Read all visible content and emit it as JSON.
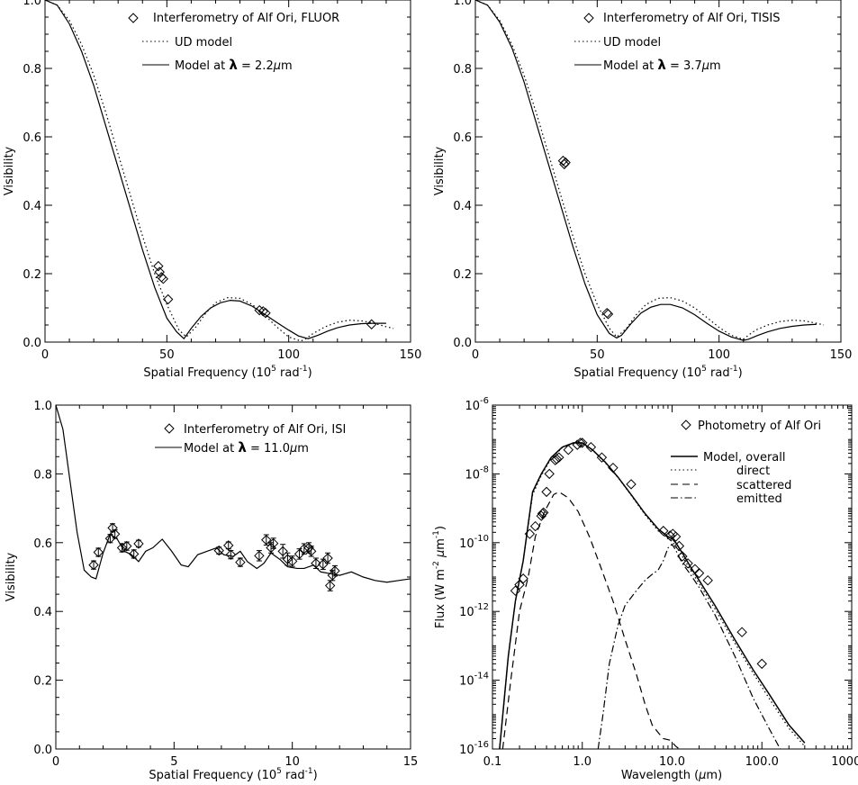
{
  "figure": {
    "panels": [
      {
        "id": "p1",
        "xlabel_main": "Spatial Frequency (10",
        "xlabel_sup": "5",
        "xlabel_tail": " rad",
        "xlabel_sup2": "-1",
        "xlabel_end": ")",
        "ylabel": "Visibility",
        "xticks": [
          "0",
          "50",
          "100",
          "150"
        ],
        "yticks": [
          "0.0",
          "0.2",
          "0.4",
          "0.6",
          "0.8",
          "1.0"
        ],
        "legend": [
          "Interferometry of Alf Ori, FLUOR",
          "UD model",
          "Model at",
          "λ",
          "= 2.2",
          "μ",
          "m"
        ]
      },
      {
        "id": "p2",
        "xlabel_main": "Spatial Frequency (10",
        "xlabel_sup": "5",
        "xlabel_tail": " rad",
        "xlabel_sup2": "-1",
        "xlabel_end": ")",
        "ylabel": "Visibility",
        "xticks": [
          "0",
          "50",
          "100",
          "150"
        ],
        "yticks": [
          "0.0",
          "0.2",
          "0.4",
          "0.6",
          "0.8",
          "1.0"
        ],
        "legend": [
          "Interferometry of Alf Ori, TISIS",
          "UD model",
          "Model at",
          "λ",
          "= 3.7",
          "μ",
          "m"
        ]
      },
      {
        "id": "p3",
        "xlabel_main": "Spatial Frequency (10",
        "xlabel_sup": "5",
        "xlabel_tail": " rad",
        "xlabel_sup2": "-1",
        "xlabel_end": ")",
        "ylabel": "Visibility",
        "xticks": [
          "0",
          "5",
          "10",
          "15"
        ],
        "yticks": [
          "0.0",
          "0.2",
          "0.4",
          "0.6",
          "0.8",
          "1.0"
        ],
        "legend": [
          "Interferometry of Alf Ori, ISI",
          "Model at",
          "λ",
          "= 11.0",
          "μ",
          "m"
        ]
      },
      {
        "id": "p4",
        "xlabel_main": "Wavelength (",
        "xlabel_mu": "μ",
        "xlabel_end": "m)",
        "ylabel_main": "Flux (W m",
        "ylabel_sup": "-2",
        "ylabel_mu": " μ",
        "ylabel_m": "m",
        "ylabel_sup2": "-1",
        "ylabel_end": ")",
        "xticks": [
          "0.1",
          "1.0",
          "10.0",
          "100.0",
          "1000.0"
        ],
        "ytick_base": "10",
        "ytick_exps": [
          "-16",
          "-14",
          "-12",
          "-10",
          "-8",
          "-6"
        ],
        "legend": [
          "Photometry of Alf Ori",
          "Model, overall",
          "direct",
          "scattered",
          "emitted"
        ]
      }
    ]
  },
  "chart_data": [
    {
      "type": "line",
      "panel": "top-left",
      "title": "",
      "xlabel": "Spatial Frequency (10^5 rad^-1)",
      "ylabel": "Visibility",
      "xlim": [
        0,
        150
      ],
      "ylim": [
        0,
        1.0
      ],
      "legend_position": "top-right",
      "series": [
        {
          "name": "Interferometry of Alf Ori, FLUOR",
          "kind": "points",
          "x": [
            46.5,
            47.0,
            47.8,
            48.5,
            50.5,
            88.0,
            89.5,
            90.5,
            134.0
          ],
          "y": [
            0.222,
            0.205,
            0.19,
            0.185,
            0.125,
            0.093,
            0.09,
            0.085,
            0.052
          ]
        },
        {
          "name": "UD model",
          "kind": "dotted",
          "x": [
            0,
            5,
            10,
            15,
            20,
            25,
            30,
            35,
            40,
            45,
            50,
            55,
            58,
            62,
            66,
            70,
            75,
            80,
            85,
            90,
            95,
            100,
            105,
            107,
            110,
            115,
            120,
            125,
            130,
            135,
            140,
            143
          ],
          "y": [
            1.0,
            0.985,
            0.94,
            0.87,
            0.78,
            0.67,
            0.55,
            0.43,
            0.31,
            0.2,
            0.11,
            0.035,
            0.015,
            0.045,
            0.085,
            0.115,
            0.13,
            0.128,
            0.11,
            0.08,
            0.045,
            0.015,
            0.003,
            0.01,
            0.025,
            0.045,
            0.058,
            0.064,
            0.062,
            0.055,
            0.045,
            0.04
          ]
        },
        {
          "name": "Model at λ = 2.2μm",
          "kind": "solid",
          "x": [
            0,
            5,
            10,
            15,
            20,
            25,
            30,
            35,
            40,
            45,
            50,
            54,
            57,
            60,
            64,
            68,
            72,
            76,
            80,
            85,
            90,
            95,
            100,
            104,
            108,
            112,
            116,
            120,
            125,
            130,
            135,
            140
          ],
          "y": [
            1.0,
            0.985,
            0.93,
            0.85,
            0.75,
            0.63,
            0.51,
            0.39,
            0.27,
            0.16,
            0.07,
            0.03,
            0.01,
            0.04,
            0.075,
            0.1,
            0.115,
            0.122,
            0.12,
            0.105,
            0.082,
            0.058,
            0.035,
            0.018,
            0.01,
            0.02,
            0.032,
            0.042,
            0.05,
            0.054,
            0.055,
            0.055
          ]
        }
      ]
    },
    {
      "type": "line",
      "panel": "top-right",
      "title": "",
      "xlabel": "Spatial Frequency (10^5 rad^-1)",
      "ylabel": "Visibility",
      "xlim": [
        0,
        150
      ],
      "ylim": [
        0,
        1.0
      ],
      "legend_position": "top-right",
      "series": [
        {
          "name": "Interferometry of Alf Ori, TISIS",
          "kind": "points",
          "x": [
            36.0,
            36.5,
            37.0,
            54.0,
            54.5
          ],
          "y": [
            0.53,
            0.52,
            0.525,
            0.085,
            0.082
          ]
        },
        {
          "name": "UD model",
          "kind": "dotted",
          "x": [
            0,
            5,
            10,
            15,
            20,
            25,
            30,
            35,
            40,
            45,
            50,
            55,
            58,
            62,
            66,
            70,
            75,
            80,
            85,
            90,
            95,
            100,
            105,
            110,
            112,
            115,
            120,
            125,
            130,
            135,
            140,
            143
          ],
          "y": [
            1.0,
            0.985,
            0.94,
            0.87,
            0.78,
            0.67,
            0.55,
            0.43,
            0.31,
            0.2,
            0.11,
            0.04,
            0.015,
            0.04,
            0.08,
            0.11,
            0.128,
            0.13,
            0.12,
            0.1,
            0.072,
            0.043,
            0.02,
            0.008,
            0.02,
            0.035,
            0.05,
            0.06,
            0.064,
            0.062,
            0.055,
            0.05
          ]
        },
        {
          "name": "Model at λ = 3.7μm",
          "kind": "solid",
          "x": [
            0,
            5,
            10,
            15,
            20,
            25,
            30,
            35,
            40,
            45,
            50,
            55,
            58,
            60,
            64,
            68,
            72,
            76,
            80,
            85,
            90,
            95,
            100,
            105,
            110,
            112,
            116,
            120,
            125,
            130,
            135,
            140
          ],
          "y": [
            1.0,
            0.985,
            0.935,
            0.86,
            0.76,
            0.64,
            0.52,
            0.4,
            0.28,
            0.17,
            0.08,
            0.025,
            0.012,
            0.02,
            0.055,
            0.085,
            0.102,
            0.11,
            0.11,
            0.1,
            0.08,
            0.055,
            0.032,
            0.015,
            0.005,
            0.008,
            0.02,
            0.03,
            0.04,
            0.046,
            0.05,
            0.052
          ]
        }
      ]
    },
    {
      "type": "line",
      "panel": "bottom-left",
      "title": "",
      "xlabel": "Spatial Frequency (10^5 rad^-1)",
      "ylabel": "Visibility",
      "xlim": [
        0,
        15
      ],
      "ylim": [
        0,
        1.0
      ],
      "legend_position": "top-right",
      "series": [
        {
          "name": "Interferometry of Alf Ori, ISI",
          "kind": "points_errorbars",
          "x": [
            1.6,
            1.8,
            2.3,
            2.4,
            2.5,
            2.8,
            3.0,
            3.3,
            3.5,
            6.9,
            7.3,
            7.4,
            7.8,
            8.6,
            8.9,
            9.1,
            9.2,
            9.6,
            9.8,
            10.0,
            10.3,
            10.5,
            10.7,
            10.8,
            11.0,
            11.3,
            11.5,
            11.6,
            11.7,
            11.8
          ],
          "y": [
            0.535,
            0.572,
            0.612,
            0.643,
            0.625,
            0.585,
            0.59,
            0.567,
            0.597,
            0.577,
            0.592,
            0.565,
            0.543,
            0.562,
            0.608,
            0.585,
            0.598,
            0.575,
            0.552,
            0.546,
            0.567,
            0.582,
            0.585,
            0.575,
            0.54,
            0.537,
            0.555,
            0.475,
            0.505,
            0.518
          ],
          "err": [
            0.012,
            0.012,
            0.012,
            0.012,
            0.012,
            0.012,
            0.012,
            0.012,
            0.01,
            0.01,
            0.01,
            0.012,
            0.012,
            0.015,
            0.015,
            0.015,
            0.015,
            0.02,
            0.018,
            0.015,
            0.015,
            0.015,
            0.015,
            0.015,
            0.015,
            0.015,
            0.015,
            0.015,
            0.015,
            0.015
          ]
        },
        {
          "name": "Model at λ = 11.0μm",
          "kind": "solid",
          "x": [
            0,
            0.3,
            0.6,
            0.9,
            1.2,
            1.5,
            1.7,
            2.0,
            2.3,
            2.6,
            2.9,
            3.2,
            3.5,
            3.8,
            4.1,
            4.5,
            4.9,
            5.3,
            5.6,
            6.0,
            6.4,
            6.8,
            7.1,
            7.5,
            7.8,
            8.1,
            8.5,
            8.8,
            9.1,
            9.5,
            9.8,
            10.2,
            10.5,
            10.9,
            11.2,
            11.6,
            12.0,
            12.5,
            13.0,
            13.5,
            14.0,
            14.5,
            15.0
          ],
          "y": [
            1.0,
            0.93,
            0.78,
            0.63,
            0.52,
            0.5,
            0.495,
            0.57,
            0.625,
            0.61,
            0.575,
            0.565,
            0.545,
            0.575,
            0.585,
            0.61,
            0.575,
            0.535,
            0.53,
            0.565,
            0.575,
            0.585,
            0.565,
            0.56,
            0.575,
            0.545,
            0.525,
            0.54,
            0.57,
            0.55,
            0.53,
            0.525,
            0.525,
            0.535,
            0.515,
            0.51,
            0.505,
            0.515,
            0.5,
            0.49,
            0.485,
            0.49,
            0.495
          ]
        }
      ]
    },
    {
      "type": "line",
      "panel": "bottom-right",
      "title": "",
      "xlabel": "Wavelength (μm)",
      "ylabel": "Flux (W m^-2 μm^-1)",
      "xscale": "log",
      "yscale": "log",
      "xlim": [
        0.1,
        1000.0
      ],
      "ylim": [
        1e-16,
        1e-06
      ],
      "legend_position": "top-right",
      "series": [
        {
          "name": "Photometry of Alf Ori",
          "kind": "points",
          "x": [
            0.18,
            0.2,
            0.22,
            0.26,
            0.3,
            0.35,
            0.36,
            0.37,
            0.4,
            0.43,
            0.5,
            0.52,
            0.55,
            0.7,
            0.88,
            0.95,
            1.0,
            1.25,
            1.65,
            2.2,
            3.5,
            8.0,
            9.5,
            10.2,
            11.0,
            12.0,
            13.0,
            15.0,
            18.0,
            20.0,
            25.0,
            60.0,
            100.0
          ],
          "y": [
            4e-12,
            6e-12,
            9e-12,
            1.8e-10,
            3e-10,
            6e-10,
            7e-10,
            7.5e-10,
            3e-09,
            1e-08,
            2.5e-08,
            2.7e-08,
            3e-08,
            5e-08,
            7e-08,
            8e-08,
            8e-08,
            6e-08,
            3e-08,
            1.5e-08,
            5e-09,
            2.2e-10,
            1.6e-10,
            1.8e-10,
            1.5e-10,
            8e-11,
            4e-11,
            2.5e-11,
            1.7e-11,
            1.3e-11,
            8e-12,
            2.5e-13,
            3e-14
          ]
        },
        {
          "name": "Model, overall",
          "kind": "solid",
          "x": [
            0.12,
            0.15,
            0.18,
            0.22,
            0.28,
            0.35,
            0.45,
            0.6,
            0.8,
            1.0,
            1.3,
            1.8,
            2.5,
            3.5,
            5.0,
            7.0,
            9.0,
            10.0,
            11.0,
            13.0,
            16.0,
            20.0,
            30.0,
            50.0,
            80.0,
            120.0,
            200.0,
            300.0
          ],
          "y": [
            1e-16,
            5e-14,
            2e-12,
            3e-11,
            3e-09,
            1e-08,
            3e-08,
            6e-08,
            8e-08,
            8e-08,
            5e-08,
            2.2e-08,
            8e-09,
            2.5e-09,
            7e-10,
            2.5e-10,
            1.5e-10,
            1.3e-10,
            1e-10,
            5e-11,
            2e-11,
            8e-12,
            1.5e-12,
            1.5e-13,
            2e-14,
            4e-15,
            5e-16,
            1.5e-16
          ]
        },
        {
          "name": "direct",
          "kind": "dotted",
          "x": [
            0.12,
            0.15,
            0.18,
            0.22,
            0.28,
            0.35,
            0.45,
            0.6,
            0.8,
            1.0,
            1.3,
            1.8,
            2.5,
            3.5,
            5.0,
            7.0,
            9.0,
            10.0,
            11.0,
            13.0,
            16.0,
            20.0,
            30.0,
            50.0,
            80.0,
            120.0,
            200.0,
            300.0
          ],
          "y": [
            1e-16,
            5e-14,
            2e-12,
            3e-11,
            2.5e-09,
            9e-09,
            2.8e-08,
            5.8e-08,
            7.8e-08,
            7.8e-08,
            4.9e-08,
            2.1e-08,
            7.8e-09,
            2.4e-09,
            6.5e-10,
            2.2e-10,
            1.3e-10,
            1.1e-10,
            8e-11,
            4e-11,
            1.6e-11,
            6.5e-12,
            1.2e-12,
            1.2e-13,
            1.6e-14,
            3e-15,
            4e-16,
            1.2e-16
          ]
        },
        {
          "name": "scattered",
          "kind": "dashed",
          "x": [
            0.13,
            0.16,
            0.2,
            0.25,
            0.3,
            0.38,
            0.48,
            0.55,
            0.7,
            0.9,
            1.2,
            1.6,
            2.2,
            3.0,
            4.0,
            5.0,
            6.0,
            7.0,
            8.0,
            9.5,
            11.0,
            12.0
          ],
          "y": [
            1e-16,
            1e-14,
            1e-12,
            1e-11,
            1.5e-10,
            8e-10,
            2.5e-09,
            3e-09,
            2e-09,
            8e-10,
            1.5e-10,
            2e-11,
            2e-12,
            1.5e-13,
            1.5e-14,
            2e-15,
            5e-16,
            3e-16,
            2e-16,
            1.8e-16,
            1.2e-16,
            1e-16
          ]
        },
        {
          "name": "emitted",
          "kind": "dashdot",
          "x": [
            1.5,
            1.7,
            2.0,
            2.5,
            3.0,
            4.0,
            5.0,
            6.0,
            7.0,
            8.0,
            9.0,
            10.0,
            11.0,
            13.0,
            16.0,
            20.0,
            30.0,
            50.0,
            80.0,
            120.0,
            160.0
          ],
          "y": [
            1e-16,
            1e-15,
            3e-14,
            4e-13,
            1.5e-12,
            4e-12,
            8e-12,
            1.2e-11,
            1.6e-11,
            3e-11,
            7e-11,
            9e-11,
            6e-11,
            2.5e-11,
            1.2e-11,
            5e-12,
            8e-13,
            5e-14,
            3e-15,
            4e-16,
            1e-16
          ]
        }
      ]
    }
  ]
}
